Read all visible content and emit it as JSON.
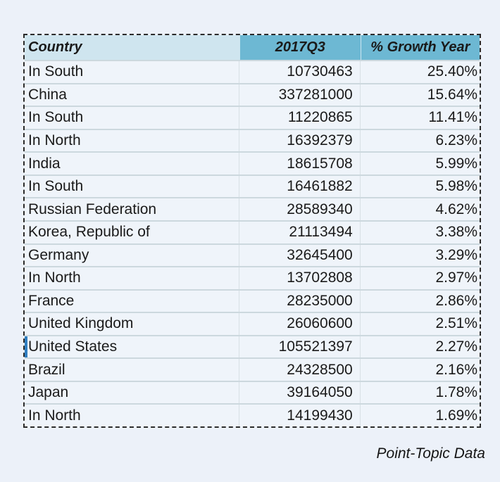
{
  "colors": {
    "page_bg": "#ecf1f9",
    "header_primary": "#6db8d3",
    "header_secondary": "#cfe5ef",
    "row_bg": "#eff4fa",
    "row_divider": "#ccd8de",
    "col_divider": "#d7e0e5",
    "selection_bar": "#2f7ec0",
    "dash_border": "#2b2b2b",
    "text": "#1a1a1a"
  },
  "chart_data": {
    "type": "table",
    "columns": [
      "Country",
      "2017Q3",
      "% Growth Year"
    ],
    "rows": [
      {
        "country": "In South",
        "value": "10730463",
        "growth": "25.40%"
      },
      {
        "country": "China",
        "value": "337281000",
        "growth": "15.64%"
      },
      {
        "country": "In South",
        "value": "11220865",
        "growth": "11.41%"
      },
      {
        "country": "In North",
        "value": "16392379",
        "growth": "6.23%"
      },
      {
        "country": "India",
        "value": "18615708",
        "growth": "5.99%"
      },
      {
        "country": "In South",
        "value": "16461882",
        "growth": "5.98%"
      },
      {
        "country": "Russian Federation",
        "value": "28589340",
        "growth": "4.62%"
      },
      {
        "country": "Korea, Republic of",
        "value": "21113494",
        "growth": "3.38%"
      },
      {
        "country": "Germany",
        "value": "32645400",
        "growth": "3.29%"
      },
      {
        "country": "In North",
        "value": "13702808",
        "growth": "2.97%"
      },
      {
        "country": "France",
        "value": "28235000",
        "growth": "2.86%"
      },
      {
        "country": "United Kingdom",
        "value": "26060600",
        "growth": "2.51%"
      },
      {
        "country": "United States",
        "value": "105521397",
        "growth": "2.27%"
      },
      {
        "country": "Brazil",
        "value": "24328500",
        "growth": "2.16%"
      },
      {
        "country": "Japan",
        "value": "39164050",
        "growth": "1.78%"
      },
      {
        "country": "In North",
        "value": "14199430",
        "growth": "1.69%"
      }
    ],
    "selected_row": "United States"
  },
  "footer": {
    "credit": "Point-Topic Data"
  }
}
